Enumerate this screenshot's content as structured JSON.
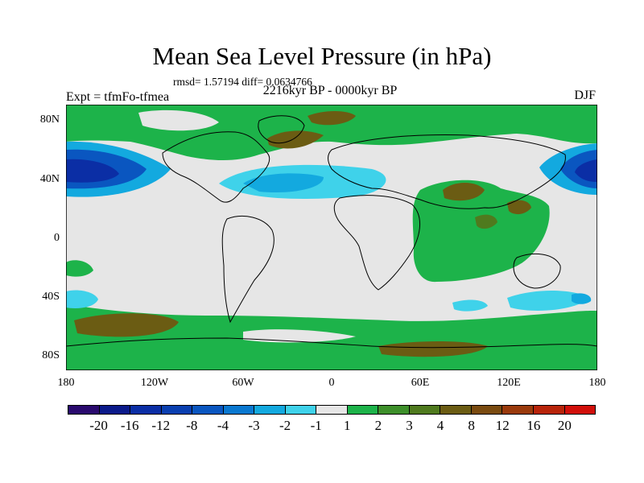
{
  "title": "Mean Sea Level Pressure (in hPa)",
  "stats": "rmsd= 1.57194 diff= 0.0634766",
  "experiment": "Expt = tfmFo-tfmea",
  "period": "2216kyr BP - 0000kyr BP",
  "season": "DJF",
  "lat_labels": [
    "80N",
    "40N",
    "0",
    "40S",
    "80S"
  ],
  "lon_labels": [
    "180",
    "120W",
    "60W",
    "0",
    "60E",
    "120E",
    "180"
  ],
  "colorbar": {
    "colors": [
      "#2a0a6e",
      "#0b1a8a",
      "#0b2ea5",
      "#0a3fb0",
      "#0a56c0",
      "#0a78d0",
      "#13a9df",
      "#3fd2ea",
      "#e6e6e6",
      "#1db34a",
      "#3d8f2a",
      "#4f7a1e",
      "#6b5c13",
      "#7a4b10",
      "#9a3a0c",
      "#b8240a",
      "#d10f0a"
    ],
    "labels": [
      "-20",
      "-16",
      "-12",
      "-8",
      "-4",
      "-3",
      "-2",
      "-1",
      "1",
      "2",
      "3",
      "4",
      "8",
      "12",
      "16",
      "20"
    ]
  },
  "colors": {
    "neutral": "#e6e6e6",
    "green": "#1db34a",
    "brown": "#6b5c13",
    "olive": "#4f7a1e",
    "cyan_light": "#3fd2ea",
    "cyan": "#13a9df",
    "blue_mid": "#0a56c0",
    "blue_dark": "#0b2ea5"
  }
}
